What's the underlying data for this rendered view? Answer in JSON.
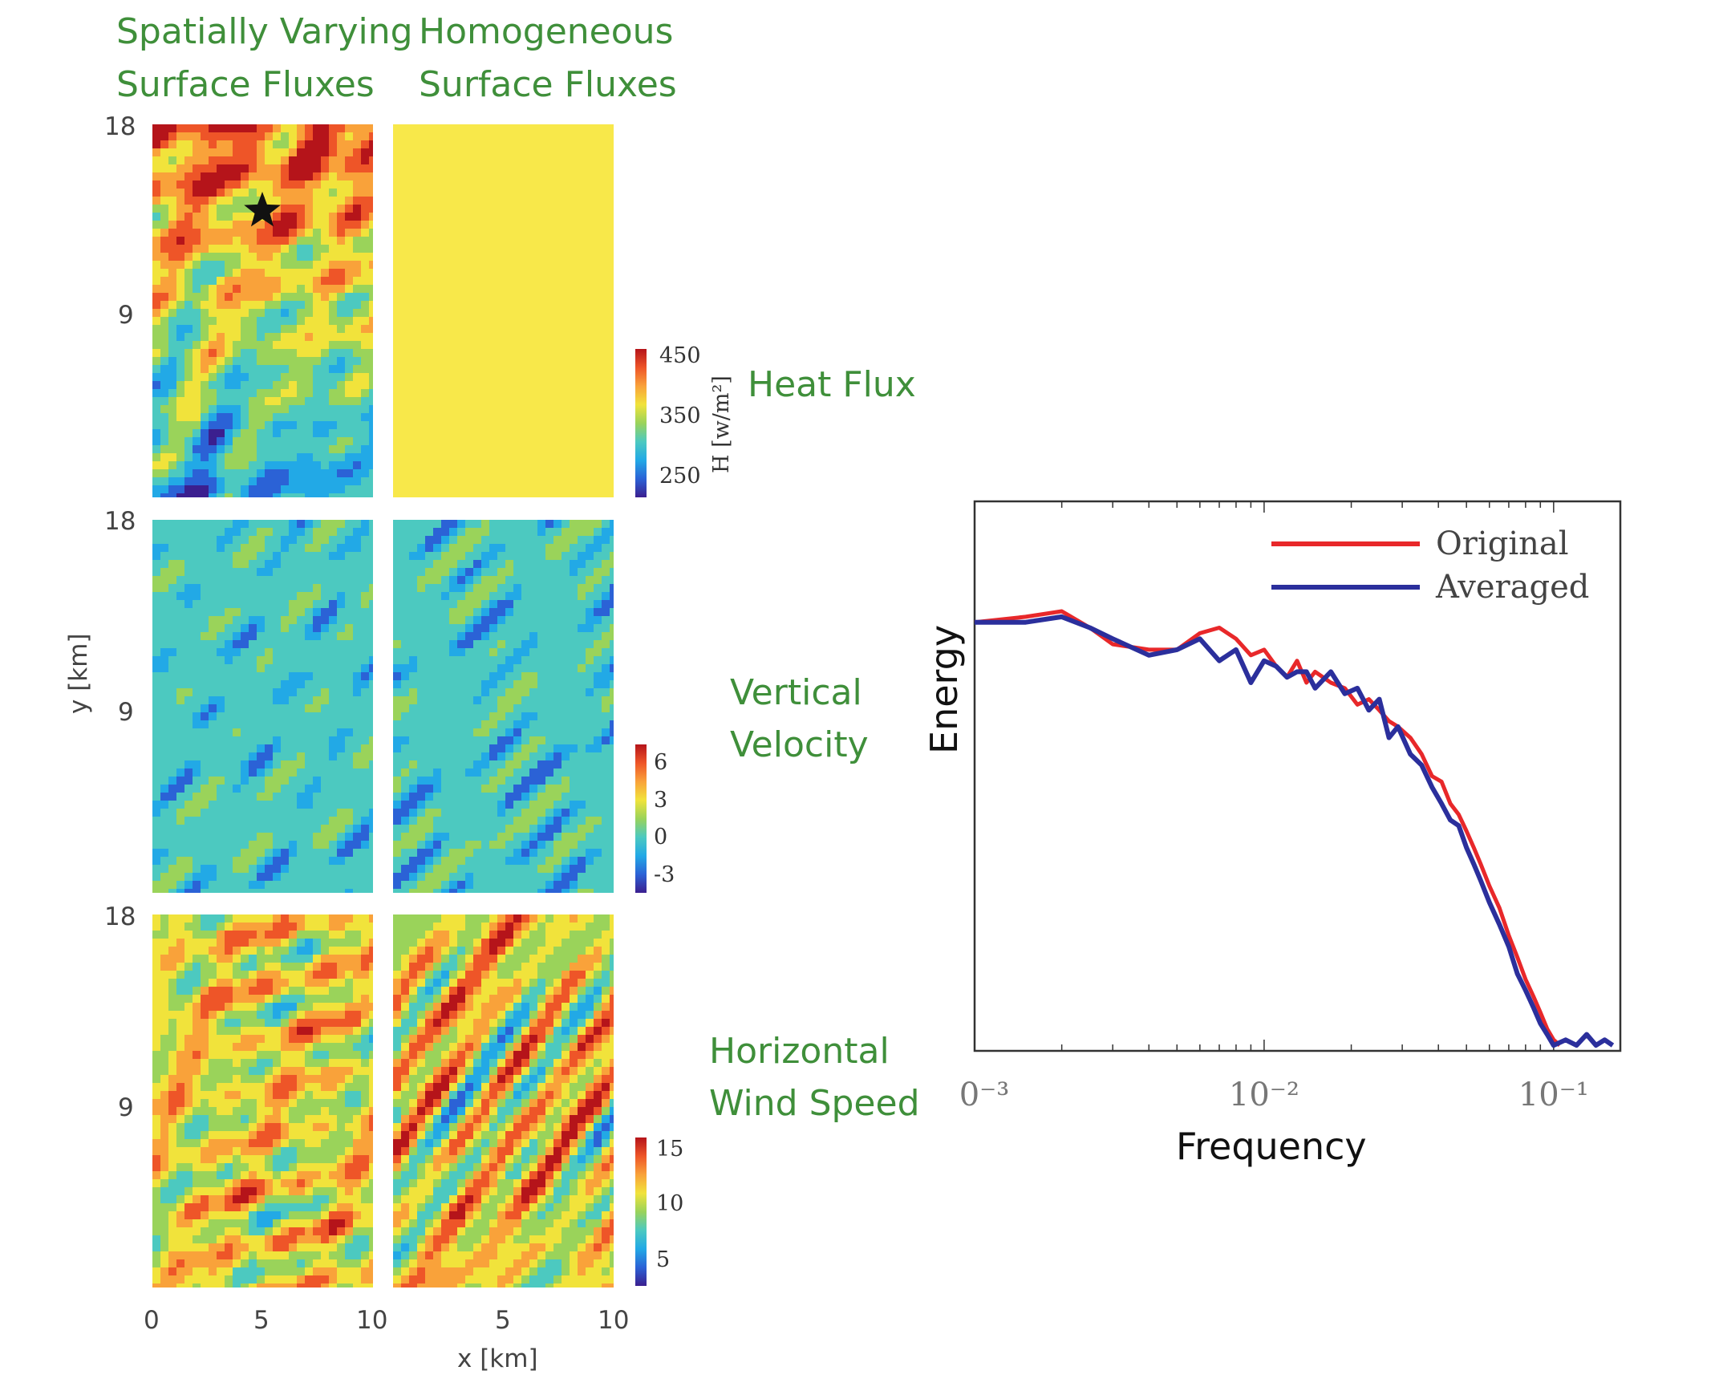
{
  "columns": {
    "left": [
      "Spatially Varying",
      "Surface Fluxes"
    ],
    "right": [
      "Homogeneous",
      "Surface Fluxes"
    ]
  },
  "rows": [
    {
      "label": [
        "Heat Flux"
      ],
      "colorbar_ticks": [
        "450",
        "350",
        "250"
      ],
      "colorbar_label": "H [w/m²]"
    },
    {
      "label": [
        "Vertical",
        "Velocity"
      ],
      "colorbar_ticks": [
        "6",
        "3",
        "0",
        "-3"
      ],
      "colorbar_label": ""
    },
    {
      "label": [
        "Horizontal",
        "Wind Speed"
      ],
      "colorbar_ticks": [
        "15",
        "10",
        "5"
      ],
      "colorbar_label": ""
    }
  ],
  "map_axes": {
    "y_ticks": [
      "18",
      "9"
    ],
    "y_label": "y [km]",
    "x_ticks": [
      "0",
      "5",
      "10"
    ],
    "x_label": "x [km]"
  },
  "colors": {
    "annotation_green": "#3f8f3a",
    "homogeneous_yellow": "#f8e84a",
    "original": "#e8282a",
    "averaged": "#2b2f9c"
  },
  "chart_data": {
    "type": "line",
    "xlabel": "Frequency",
    "ylabel": "Energy",
    "x_scale": "log",
    "xlim": [
      0.001,
      0.17
    ],
    "ylim": [
      0,
      1
    ],
    "x_tick_labels": [
      "0⁻³",
      "10⁻²",
      "10⁻¹"
    ],
    "legend_position": "top-right",
    "series": [
      {
        "name": "Original",
        "x": [
          0.001,
          0.0015,
          0.002,
          0.0025,
          0.003,
          0.004,
          0.005,
          0.006,
          0.007,
          0.008,
          0.009,
          0.01,
          0.011,
          0.012,
          0.013,
          0.014,
          0.015,
          0.017,
          0.019,
          0.021,
          0.023,
          0.025,
          0.027,
          0.029,
          0.032,
          0.035,
          0.038,
          0.041,
          0.044,
          0.047,
          0.05,
          0.053,
          0.056,
          0.06,
          0.065,
          0.07,
          0.075,
          0.08,
          0.085,
          0.09,
          0.095,
          0.1,
          0.105
        ],
        "y": [
          0.78,
          0.79,
          0.8,
          0.77,
          0.74,
          0.73,
          0.73,
          0.76,
          0.77,
          0.75,
          0.72,
          0.73,
          0.7,
          0.68,
          0.71,
          0.67,
          0.69,
          0.67,
          0.66,
          0.63,
          0.64,
          0.62,
          0.6,
          0.59,
          0.57,
          0.54,
          0.5,
          0.49,
          0.45,
          0.43,
          0.4,
          0.37,
          0.34,
          0.3,
          0.26,
          0.21,
          0.17,
          0.13,
          0.1,
          0.07,
          0.04,
          0.02,
          0.01
        ]
      },
      {
        "name": "Averaged",
        "x": [
          0.001,
          0.0015,
          0.002,
          0.0025,
          0.003,
          0.004,
          0.005,
          0.006,
          0.007,
          0.008,
          0.009,
          0.01,
          0.011,
          0.012,
          0.013,
          0.014,
          0.015,
          0.017,
          0.019,
          0.021,
          0.023,
          0.025,
          0.027,
          0.029,
          0.032,
          0.035,
          0.038,
          0.041,
          0.044,
          0.047,
          0.05,
          0.053,
          0.056,
          0.06,
          0.065,
          0.07,
          0.075,
          0.08,
          0.085,
          0.09,
          0.095,
          0.1,
          0.11,
          0.12,
          0.13,
          0.14,
          0.15,
          0.16
        ],
        "y": [
          0.78,
          0.78,
          0.79,
          0.77,
          0.75,
          0.72,
          0.73,
          0.75,
          0.71,
          0.73,
          0.67,
          0.71,
          0.7,
          0.68,
          0.69,
          0.69,
          0.66,
          0.69,
          0.65,
          0.66,
          0.62,
          0.64,
          0.57,
          0.59,
          0.54,
          0.52,
          0.48,
          0.45,
          0.42,
          0.41,
          0.37,
          0.34,
          0.31,
          0.27,
          0.23,
          0.19,
          0.14,
          0.11,
          0.08,
          0.05,
          0.03,
          0.01,
          0.02,
          0.01,
          0.03,
          0.01,
          0.02,
          0.01
        ]
      }
    ]
  }
}
